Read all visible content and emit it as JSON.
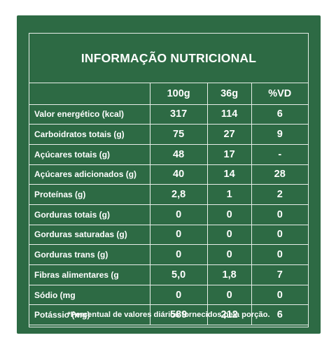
{
  "title": "INFORMAÇÃO NUTRICIONAL",
  "columns": [
    "100g",
    "36g",
    "%VD"
  ],
  "rows": [
    {
      "label": "Valor energético (kcal)",
      "v100": "317",
      "v36": "114",
      "vd": "6"
    },
    {
      "label": "Carboidratos totais (g)",
      "v100": "75",
      "v36": "27",
      "vd": "9"
    },
    {
      "label": "Açúcares totais (g)",
      "v100": "48",
      "v36": "17",
      "vd": "-"
    },
    {
      "label": "Açúcares adicionados (g)",
      "v100": "40",
      "v36": "14",
      "vd": "28"
    },
    {
      "label": "Proteínas (g)",
      "v100": "2,8",
      "v36": "1",
      "vd": "2"
    },
    {
      "label": "Gorduras totais (g)",
      "v100": "0",
      "v36": "0",
      "vd": "0"
    },
    {
      "label": "Gorduras saturadas (g)",
      "v100": "0",
      "v36": "0",
      "vd": "0"
    },
    {
      "label": "Gorduras trans (g)",
      "v100": "0",
      "v36": "0",
      "vd": "0"
    },
    {
      "label": "Fibras alimentares (g",
      "v100": "5,0",
      "v36": "1,8",
      "vd": "7"
    },
    {
      "label": "Sódio (mg",
      "v100": "0",
      "v36": "0",
      "vd": "0"
    },
    {
      "label": "Potássio (mg)",
      "v100": "589",
      "v36": "212",
      "vd": "6"
    }
  ],
  "footnote": "*Percentual de valores diários fornecidos pela porção.",
  "colors": {
    "panel": "#2d6a44",
    "text": "#ffffff"
  }
}
